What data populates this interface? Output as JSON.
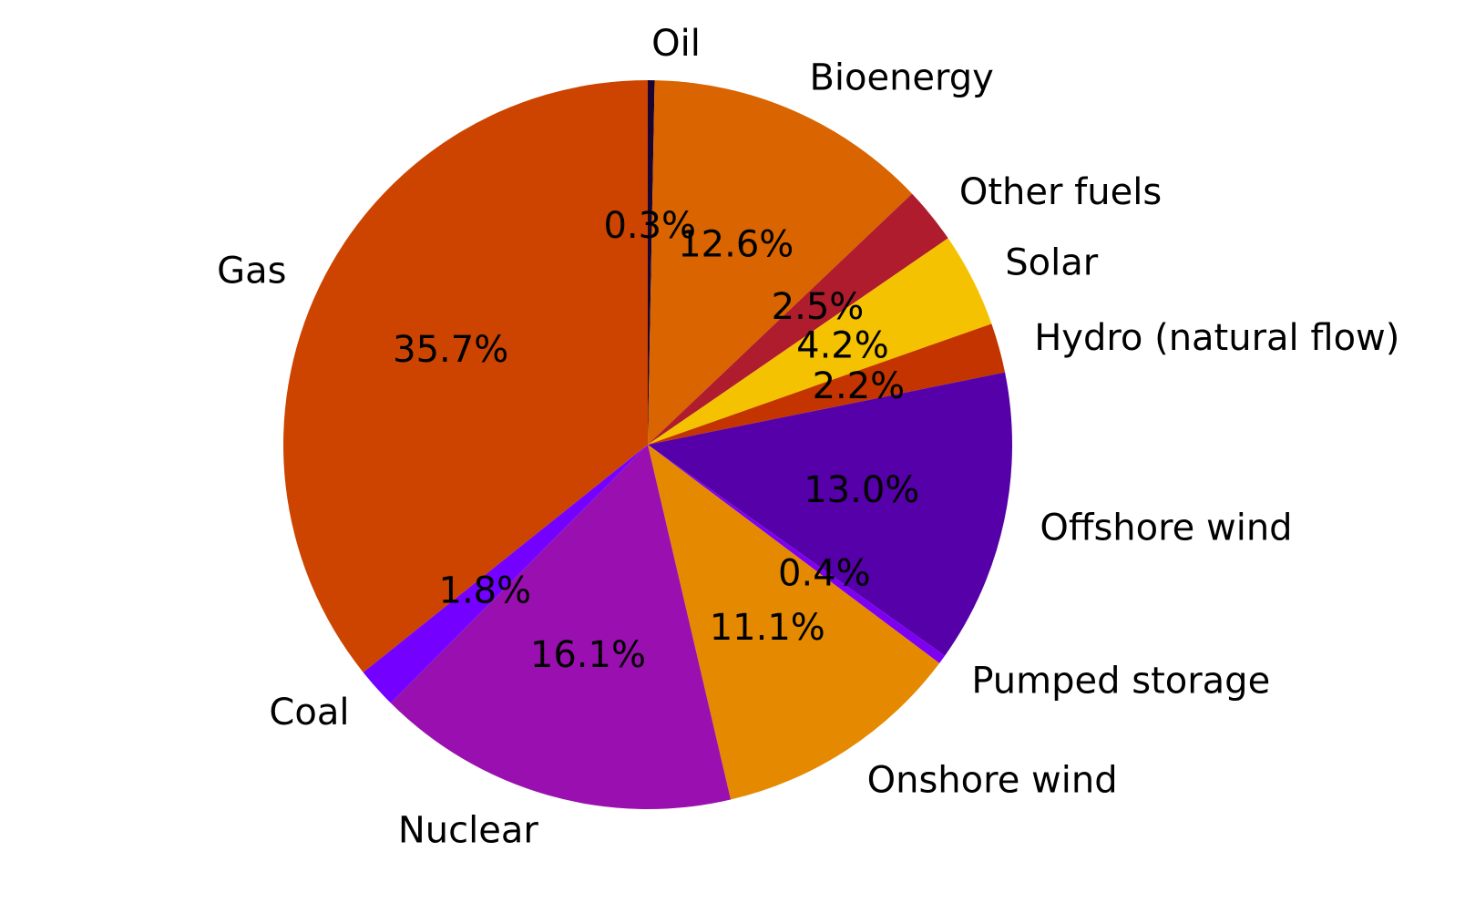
{
  "chart_data": {
    "type": "pie",
    "title": "",
    "start_angle_deg": 90,
    "direction": "clockwise",
    "slices": [
      {
        "label": "Oil",
        "value": 0.3,
        "pct_text": "0.3%",
        "color": "#1a0530"
      },
      {
        "label": "Bioenergy",
        "value": 12.6,
        "pct_text": "12.6%",
        "color": "#d96400"
      },
      {
        "label": "Other fuels",
        "value": 2.5,
        "pct_text": "2.5%",
        "color": "#ae1c2e"
      },
      {
        "label": "Solar",
        "value": 4.2,
        "pct_text": "4.2%",
        "color": "#f4c200"
      },
      {
        "label": "Hydro (natural flow)",
        "value": 2.2,
        "pct_text": "2.2%",
        "color": "#c43400"
      },
      {
        "label": "Offshore wind",
        "value": 13.0,
        "pct_text": "13.0%",
        "color": "#5500a8"
      },
      {
        "label": "Pumped storage",
        "value": 0.4,
        "pct_text": "0.4%",
        "color": "#7d00f0"
      },
      {
        "label": "Onshore wind",
        "value": 11.1,
        "pct_text": "11.1%",
        "color": "#e58a00"
      },
      {
        "label": "Nuclear",
        "value": 16.1,
        "pct_text": "16.1%",
        "color": "#9a0fb0"
      },
      {
        "label": "Coal",
        "value": 1.8,
        "pct_text": "1.8%",
        "color": "#7400ff"
      },
      {
        "label": "Gas",
        "value": 35.7,
        "pct_text": "35.7%",
        "color": "#cc4400"
      }
    ]
  }
}
